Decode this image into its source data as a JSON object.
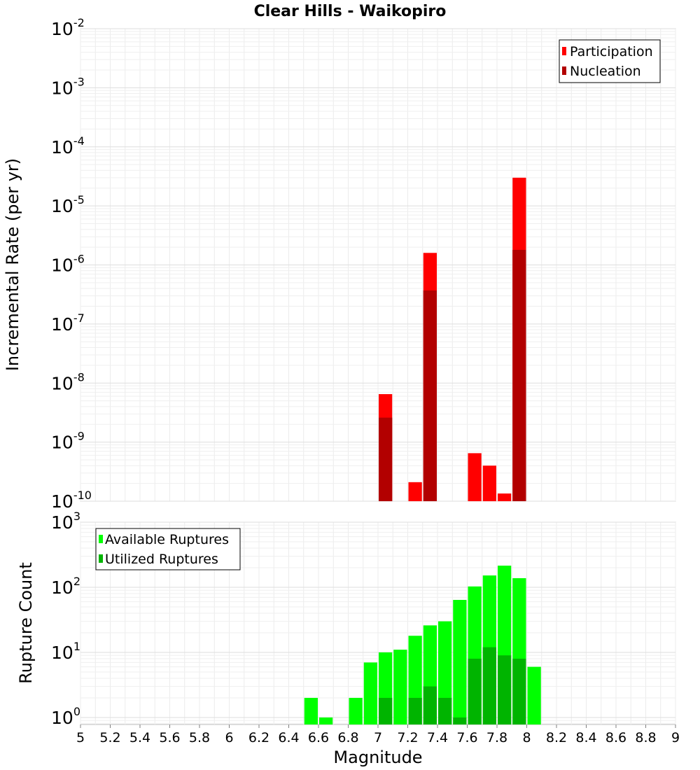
{
  "chart_data": [
    {
      "type": "bar",
      "title": "Clear Hills - Waikopiro",
      "xlabel": "",
      "ylabel": "Incremental Rate (per yr)",
      "yscale": "log",
      "ylim": [
        1e-10,
        0.01
      ],
      "xlim": [
        5,
        9
      ],
      "bin_width": 0.1,
      "ytick_base": "10",
      "ytick_exponents": [
        "-2",
        "-3",
        "-4",
        "-5",
        "-6",
        "-7",
        "-8",
        "-9",
        "-10"
      ],
      "legend": {
        "position": "top-right",
        "entries": [
          "Participation",
          "Nucleation"
        ]
      },
      "series": [
        {
          "name": "Participation",
          "color": "#ff0000",
          "x": [
            7.05,
            7.25,
            7.35,
            7.65,
            7.75,
            7.85,
            7.95
          ],
          "values": [
            6.5e-09,
            2.1e-10,
            1.6e-06,
            6.5e-10,
            4e-10,
            1.35e-10,
            3e-05
          ]
        },
        {
          "name": "Nucleation",
          "color": "#b20000",
          "x": [
            7.05,
            7.35,
            7.95
          ],
          "values": [
            2.6e-09,
            3.7e-07,
            1.8e-06
          ]
        }
      ]
    },
    {
      "type": "bar",
      "title": "",
      "xlabel": "Magnitude",
      "ylabel": "Rupture Count",
      "yscale": "log",
      "ylim": [
        0.78,
        1000
      ],
      "xlim": [
        5,
        9
      ],
      "bin_width": 0.1,
      "ytick_base": "10",
      "ytick_exponents": [
        "3",
        "2",
        "1",
        "0"
      ],
      "xticks": [
        "5",
        "5.2",
        "5.4",
        "5.6",
        "5.8",
        "6",
        "6.2",
        "6.4",
        "6.6",
        "6.8",
        "7",
        "7.2",
        "7.4",
        "7.6",
        "7.8",
        "8",
        "8.2",
        "8.4",
        "8.6",
        "8.8",
        "9"
      ],
      "legend": {
        "position": "top-left",
        "entries": [
          "Available Ruptures",
          "Utilized Ruptures"
        ]
      },
      "series": [
        {
          "name": "Available Ruptures",
          "color": "#00ff00",
          "x": [
            6.55,
            6.65,
            6.85,
            6.95,
            7.05,
            7.15,
            7.25,
            7.35,
            7.45,
            7.55,
            7.65,
            7.75,
            7.85,
            7.95,
            8.05
          ],
          "values": [
            2,
            1,
            2,
            7,
            10,
            11,
            18,
            26,
            30,
            64,
            103,
            152,
            215,
            138,
            6
          ]
        },
        {
          "name": "Utilized Ruptures",
          "color": "#00b400",
          "x": [
            7.05,
            7.25,
            7.35,
            7.45,
            7.55,
            7.65,
            7.75,
            7.85,
            7.95
          ],
          "values": [
            2,
            2,
            3,
            2,
            1,
            8,
            12,
            9,
            8
          ]
        }
      ]
    }
  ]
}
